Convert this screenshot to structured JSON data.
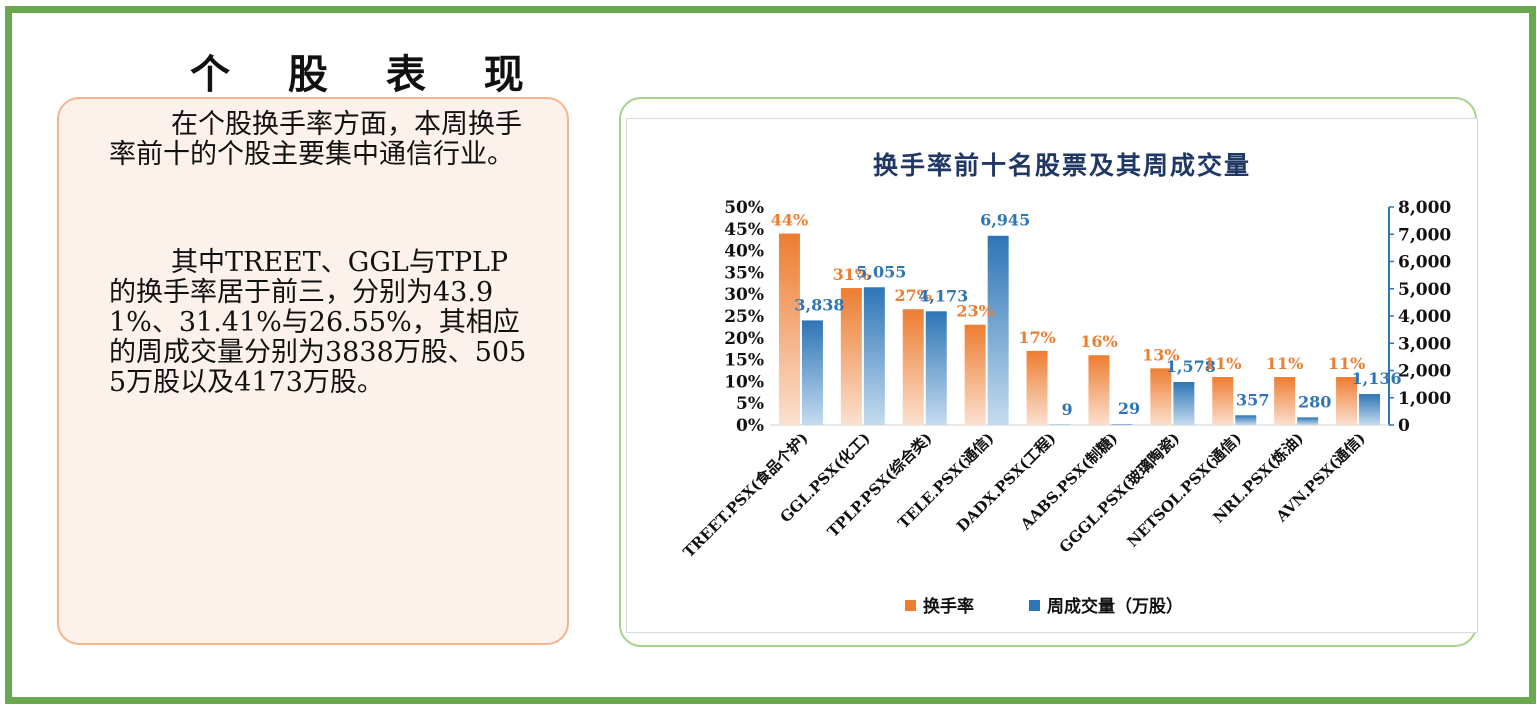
{
  "page": {
    "heading": "个 股 表 现",
    "paragraph1": "在个股换手率方面，本周换手率前十的个股主要集中通信行业。",
    "paragraph2": "其中TREET、GGL与TPLP的换手率居于前三，分别为43.91%、31.41%与26.55%，其相应的周成交量分别为3838万股、5055万股以及4173万股。"
  },
  "chart_data": {
    "type": "bar",
    "title": "换手率前十名股票及其周成交量",
    "categories": [
      "TREET.PSX(食品个护)",
      "GGL.PSX(化工)",
      "TPLP.PSX(综合类)",
      "TELE.PSX(通信)",
      "DADX.PSX(工程)",
      "AABS.PSX(制糖)",
      "GGGL.PSX(玻璃陶瓷)",
      "NETSOL.PSX(通信)",
      "NRL.PSX(炼油)",
      "AVN.PSX(通信)"
    ],
    "series": [
      {
        "name": "换手率",
        "axis": "left",
        "values": [
          0.4391,
          0.3141,
          0.2655,
          0.23,
          0.17,
          0.16,
          0.13,
          0.11,
          0.11,
          0.11
        ],
        "labels": [
          "44%",
          "31%",
          "27%",
          "23%",
          "17%",
          "16%",
          "13%",
          "11%",
          "11%",
          "11%"
        ],
        "color": "#ed7d31"
      },
      {
        "name": "周成交量（万股）",
        "axis": "right",
        "values": [
          3838,
          5055,
          4173,
          6945,
          9,
          29,
          1578,
          357,
          280,
          1136
        ],
        "labels": [
          "3,838",
          "5,055",
          "4,173",
          "6,945",
          "9",
          "29",
          "1,578",
          "357",
          "280",
          "1,136"
        ],
        "color": "#2e75b6"
      }
    ],
    "y_left": {
      "range": [
        0,
        0.5
      ],
      "ticks": [
        "0%",
        "5%",
        "10%",
        "15%",
        "20%",
        "25%",
        "30%",
        "35%",
        "40%",
        "45%",
        "50%"
      ]
    },
    "y_right": {
      "range": [
        0,
        8000
      ],
      "ticks": [
        "0",
        "1,000",
        "2,000",
        "3,000",
        "4,000",
        "5,000",
        "6,000",
        "7,000",
        "8,000"
      ]
    },
    "legend_position": "bottom",
    "grid": false
  }
}
